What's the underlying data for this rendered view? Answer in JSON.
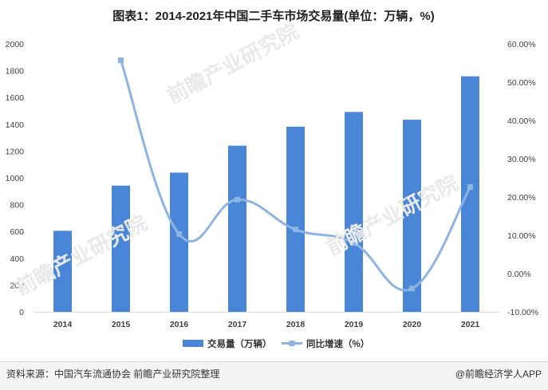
{
  "chart_data": {
    "type": "bar+line",
    "title": "图表1：2014-2021年中国二手车市场交易量(单位：万辆，%)",
    "categories": [
      "2014",
      "2015",
      "2016",
      "2017",
      "2018",
      "2019",
      "2020",
      "2021"
    ],
    "series": [
      {
        "name": "交易量（万辆）",
        "type": "bar",
        "axis": "left",
        "color": "#4a86d8",
        "values": [
          605,
          942,
          1039,
          1240,
          1382,
          1492,
          1434,
          1758
        ]
      },
      {
        "name": "同比增速（%）",
        "type": "line",
        "axis": "right",
        "color": "#8db4e2",
        "values": [
          null,
          55.7,
          10.3,
          19.3,
          11.5,
          8.0,
          -3.9,
          22.6
        ]
      }
    ],
    "y_left": {
      "min": 0,
      "max": 2000,
      "step": 200,
      "ticks": [
        "0",
        "200",
        "400",
        "600",
        "800",
        "1000",
        "1200",
        "1400",
        "1600",
        "1800",
        "2000"
      ]
    },
    "y_right": {
      "min": -10,
      "max": 60,
      "step": 10,
      "ticks": [
        "-10.00%",
        "0.00%",
        "10.00%",
        "20.00%",
        "30.00%",
        "40.00%",
        "50.00%",
        "60.00%"
      ]
    },
    "grid": false,
    "legend_position": "bottom"
  },
  "footer": {
    "source": "资料来源：中国汽车流通协会 前瞻产业研究院整理",
    "brand": "@前瞻经济学人APP"
  },
  "watermark_text": "前瞻产业研究院"
}
